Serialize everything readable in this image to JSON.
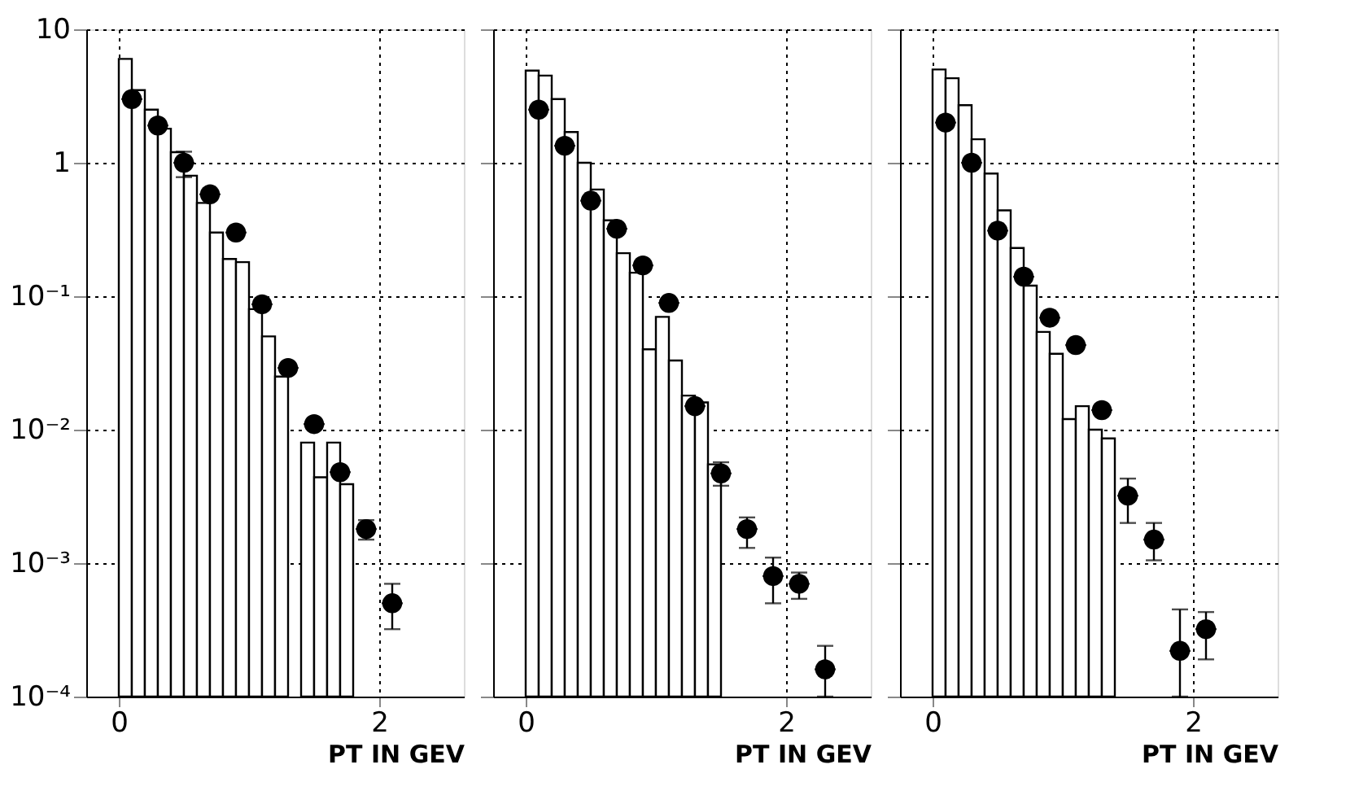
{
  "chart_data": [
    {
      "type": "scatter",
      "xlabel": "PT IN GEV",
      "xlim": [
        -0.25,
        2.65
      ],
      "xticks": [
        0,
        2
      ],
      "ylim": [
        0.0001,
        10
      ],
      "log": "y",
      "grid": true,
      "yticks": [
        {
          "value": 0.0001,
          "label": "10⁻⁴"
        },
        {
          "value": 0.001,
          "label": "10⁻³"
        },
        {
          "value": 0.01,
          "label": "10⁻²"
        },
        {
          "value": 0.1,
          "label": "10⁻¹"
        },
        1,
        10
      ],
      "series": [
        {
          "type": "histogram",
          "color": "#000000",
          "bins": [
            0,
            0.1,
            0.2,
            0.3,
            0.4,
            0.5,
            0.6,
            0.7,
            0.8,
            0.9,
            1.0,
            1.1,
            1.2,
            1.3,
            1.4,
            1.5,
            1.6,
            1.7,
            1.8
          ],
          "values": [
            6,
            3.5,
            2.5,
            1.8,
            1.2,
            0.8,
            0.5,
            0.3,
            0.19,
            0.18,
            0.08,
            0.05,
            0.025,
            null,
            0.008,
            0.0044,
            0.008,
            0.0039
          ]
        },
        {
          "color": "#000000",
          "marker": "circle",
          "x": [
            0.1,
            0.3,
            0.5,
            0.7,
            0.9,
            1.1,
            1.3,
            1.5,
            1.7,
            1.9,
            2.1
          ],
          "values": [
            3.0,
            1.9,
            1.0,
            0.58,
            0.3,
            0.087,
            0.029,
            0.011,
            0.0048,
            0.0018,
            0.0005
          ],
          "errors": [
            null,
            null,
            [
              0.78,
              1.21
            ],
            null,
            null,
            null,
            null,
            null,
            null,
            [
              0.0015,
              0.0021
            ],
            [
              0.00032,
              0.0007
            ]
          ],
          "xerrors": [
            0.08,
            0.08,
            0.08,
            0.08,
            0.08,
            0.08,
            0.08,
            0.08,
            0.08,
            0.08,
            0.08
          ]
        }
      ]
    },
    {
      "type": "scatter",
      "xlabel": "PT IN GEV",
      "xlim": [
        -0.25,
        2.65
      ],
      "xticks": [
        0,
        2
      ],
      "ylim": [
        0.0001,
        10
      ],
      "log": "y",
      "grid": true,
      "tick_labels": "x",
      "yticks": [
        {
          "value": 0.0001,
          "label": null
        },
        {
          "value": 0.001,
          "label": null
        },
        {
          "value": 0.01,
          "label": null
        },
        {
          "value": 0.1,
          "label": null
        },
        {
          "value": 1,
          "label": null
        },
        {
          "value": 10,
          "label": null
        }
      ],
      "series": [
        {
          "type": "histogram",
          "color": "#000000",
          "bins": [
            0,
            0.1,
            0.2,
            0.3,
            0.4,
            0.5,
            0.6,
            0.7,
            0.8,
            0.9,
            1.0,
            1.1,
            1.2,
            1.3,
            1.4,
            1.5
          ],
          "values": [
            4.9,
            4.5,
            3.0,
            1.7,
            1.0,
            0.63,
            0.37,
            0.21,
            0.15,
            0.04,
            0.07,
            0.033,
            0.018,
            0.016,
            0.0055
          ]
        },
        {
          "color": "#000000",
          "marker": "circle",
          "x": [
            0.1,
            0.3,
            0.5,
            0.7,
            0.9,
            1.1,
            1.3,
            1.5,
            1.7,
            1.9,
            2.1,
            2.3
          ],
          "values": [
            2.5,
            1.34,
            0.52,
            0.32,
            0.17,
            0.089,
            0.015,
            0.0047,
            0.0018,
            0.0008,
            0.0007,
            0.00016
          ],
          "errors": [
            null,
            null,
            null,
            null,
            null,
            null,
            null,
            [
              0.0038,
              0.0057
            ],
            [
              0.0013,
              0.0022
            ],
            [
              0.0005,
              0.0011
            ],
            [
              0.00054,
              0.00085
            ],
            [
              0.0001,
              0.00024
            ]
          ],
          "xerrors": [
            0.08,
            0.08,
            0.08,
            0.08,
            0.08,
            0.08,
            0.08,
            0.08,
            0.08,
            0.08,
            0.08,
            0.08
          ]
        }
      ]
    },
    {
      "type": "scatter",
      "xlabel": "PT IN GEV",
      "xlim": [
        -0.25,
        2.65
      ],
      "xticks": [
        0,
        2
      ],
      "ylim": [
        0.0001,
        10
      ],
      "log": "y",
      "grid": true,
      "tick_labels": "x",
      "yticks": [
        {
          "value": 0.0001,
          "label": null
        },
        {
          "value": 0.001,
          "label": null
        },
        {
          "value": 0.01,
          "label": null
        },
        {
          "value": 0.1,
          "label": null
        },
        {
          "value": 1,
          "label": null
        },
        {
          "value": 10,
          "label": null
        }
      ],
      "series": [
        {
          "type": "histogram",
          "color": "#000000",
          "bins": [
            0,
            0.1,
            0.2,
            0.3,
            0.4,
            0.5,
            0.6,
            0.7,
            0.8,
            0.9,
            1.0,
            1.1,
            1.2,
            1.3,
            1.4
          ],
          "values": [
            5.0,
            4.3,
            2.7,
            1.5,
            0.83,
            0.44,
            0.23,
            0.12,
            0.054,
            0.037,
            0.012,
            0.015,
            0.01,
            0.0086
          ]
        },
        {
          "color": "#000000",
          "marker": "circle",
          "x": [
            0.1,
            0.3,
            0.5,
            0.7,
            0.9,
            1.1,
            1.3,
            1.5,
            1.7,
            1.9,
            2.1
          ],
          "values": [
            2.0,
            1.0,
            0.31,
            0.14,
            0.069,
            0.043,
            0.014,
            0.0032,
            0.0015,
            0.00022,
            0.00032
          ],
          "errors": [
            null,
            null,
            null,
            null,
            null,
            null,
            null,
            [
              0.002,
              0.0043
            ],
            [
              0.00105,
              0.002
            ],
            [
              0.0001,
              0.00045
            ],
            [
              0.00019,
              0.00043
            ]
          ],
          "xerrors": [
            0.08,
            0.08,
            0.08,
            0.08,
            0.08,
            0.08,
            0.08,
            0.08,
            0.08,
            0.08,
            0.08
          ]
        }
      ]
    }
  ]
}
